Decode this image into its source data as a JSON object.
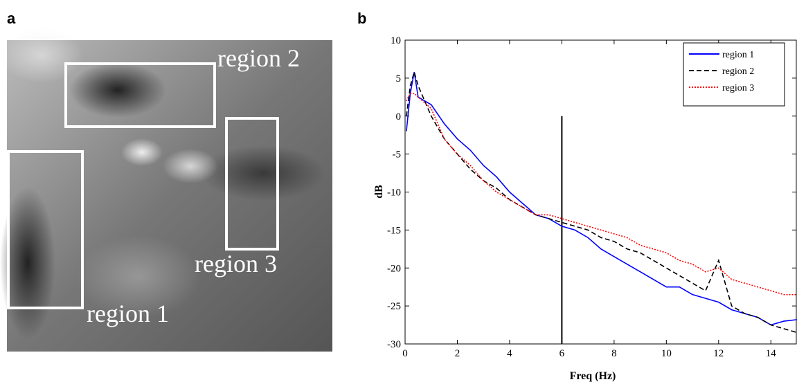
{
  "panel_labels": [
    "a",
    "b"
  ],
  "image": {
    "labels": [
      "region 1",
      "region 2",
      "region 3"
    ]
  },
  "chart_data": {
    "type": "line",
    "xlabel": "Freq (Hz)",
    "ylabel": "dB",
    "xlim": [
      0,
      15
    ],
    "ylim": [
      -30,
      10
    ],
    "xticks": [
      0,
      2,
      4,
      6,
      8,
      10,
      12,
      14
    ],
    "yticks": [
      -30,
      -25,
      -20,
      -15,
      -10,
      -5,
      0,
      5,
      10
    ],
    "legend": "upper right",
    "vline_x": 6,
    "vline_ylim": [
      -30,
      0
    ],
    "x": [
      0.05,
      0.2,
      0.35,
      0.5,
      1,
      1.5,
      2,
      2.5,
      3,
      3.5,
      4,
      4.5,
      5,
      5.5,
      6,
      6.5,
      7,
      7.5,
      8,
      8.5,
      9,
      9.5,
      10,
      10.5,
      11,
      11.5,
      12,
      12.5,
      13,
      13.5,
      14,
      14.5,
      15
    ],
    "series": [
      {
        "name": "region 1",
        "color": "#0000ff",
        "style": "solid",
        "values": [
          -2,
          3,
          5.8,
          2.5,
          1.5,
          -1,
          -3,
          -4.5,
          -6.5,
          -8,
          -10,
          -11.5,
          -13,
          -13.5,
          -14.5,
          -15,
          -16,
          -17.5,
          -18.5,
          -19.5,
          -20.5,
          -21.5,
          -22.5,
          -22.5,
          -23.5,
          -24,
          -24.5,
          -25.5,
          -26,
          -26.5,
          -27.5,
          -27,
          -26.8
        ]
      },
      {
        "name": "region 2",
        "color": "#000000",
        "style": "dashed",
        "values": [
          0,
          4,
          5.8,
          4,
          0,
          -3,
          -5,
          -7,
          -8.5,
          -9.5,
          -11,
          -12,
          -13,
          -13.5,
          -14,
          -14.5,
          -15,
          -16,
          -16.5,
          -17.5,
          -18,
          -19,
          -20,
          -21,
          -22,
          -23,
          -19,
          -25,
          -26,
          -26.5,
          -27.5,
          -28,
          -28.5
        ]
      },
      {
        "name": "region 3",
        "color": "#ff0000",
        "style": "dotted",
        "values": [
          2,
          3,
          3,
          2.5,
          1,
          -3,
          -5,
          -6.5,
          -8.5,
          -10,
          -11,
          -12,
          -13,
          -13,
          -13.5,
          -14,
          -14.5,
          -15,
          -15.5,
          -16,
          -17,
          -17.5,
          -18,
          -19,
          -19.5,
          -20.5,
          -20,
          -21.5,
          -22,
          -22.5,
          -23,
          -23.5,
          -23.5
        ]
      }
    ]
  }
}
